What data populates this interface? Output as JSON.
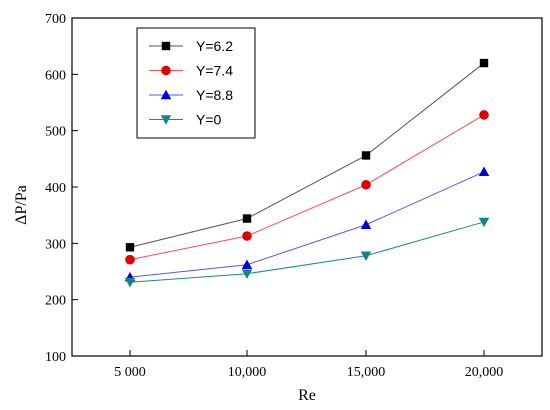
{
  "chart_data": {
    "type": "line",
    "xlabel": "Re",
    "ylabel": "ΔP/Pa",
    "categories": [
      "5 000",
      "10,000",
      "15,000",
      "20,000"
    ],
    "ylim": [
      100,
      700
    ],
    "yticks": [
      100,
      200,
      300,
      400,
      500,
      600,
      700
    ],
    "legend_position": "top-left",
    "grid": false,
    "series": [
      {
        "name": "Y=6.2",
        "marker": "square",
        "color": "#555555",
        "marker_color": "#000000",
        "values": [
          293,
          344,
          456,
          620
        ]
      },
      {
        "name": "Y=7.4",
        "marker": "circle",
        "color": "#ff4c4c",
        "marker_color": "#e00000",
        "values": [
          271,
          313,
          404,
          528
        ]
      },
      {
        "name": "Y=8.8",
        "marker": "triangle-up",
        "color": "#5555ff",
        "marker_color": "#0000e0",
        "values": [
          240,
          262,
          333,
          427
        ]
      },
      {
        "name": "Y=0",
        "marker": "triangle-down",
        "color": "#1a8a8a",
        "marker_color": "#158585",
        "values": [
          231,
          246,
          278,
          338
        ]
      }
    ]
  }
}
